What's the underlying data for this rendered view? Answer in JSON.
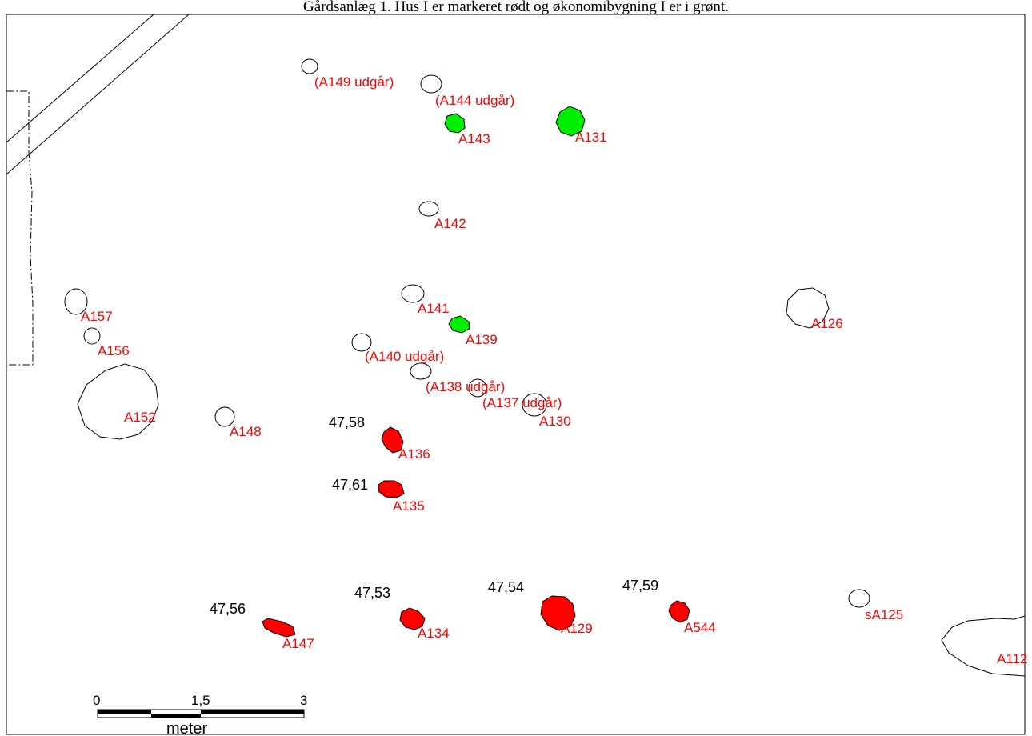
{
  "title": "Gårdsanlæg 1. Hus I er markeret rødt og økonomibygning I er i grønt.",
  "colors": {
    "house_I": "#ff0000",
    "economy_building_I": "#00ee00",
    "outline": "#000000",
    "label": "#ff0000"
  },
  "features": {
    "a149": {
      "label": "(A149 udgår)",
      "fill": "none"
    },
    "a144": {
      "label": "(A144 udgår)",
      "fill": "none"
    },
    "a143": {
      "label": "A143",
      "fill": "green"
    },
    "a131": {
      "label": "A131",
      "fill": "green"
    },
    "a142": {
      "label": "A142",
      "fill": "none"
    },
    "a141": {
      "label": "A141",
      "fill": "none"
    },
    "a139": {
      "label": "A139",
      "fill": "green"
    },
    "a157": {
      "label": "A157",
      "fill": "none"
    },
    "a156": {
      "label": "A156",
      "fill": "none"
    },
    "a140": {
      "label": "(A140 udgår)",
      "fill": "none"
    },
    "a138": {
      "label": "(A138 udgår)",
      "fill": "none"
    },
    "a137": {
      "label": "(A137 udgår)",
      "fill": "none"
    },
    "a130": {
      "label": "A130",
      "fill": "none"
    },
    "a126": {
      "label": "A126",
      "fill": "none"
    },
    "a152": {
      "label": "A152",
      "fill": "none"
    },
    "a148": {
      "label": "A148",
      "fill": "none"
    },
    "a136": {
      "label": "A136",
      "fill": "red",
      "elevation": "47,58"
    },
    "a135": {
      "label": "A135",
      "fill": "red",
      "elevation": "47,61"
    },
    "a147": {
      "label": "A147",
      "fill": "red",
      "elevation": "47,56"
    },
    "a134": {
      "label": "A134",
      "fill": "red",
      "elevation": "47,53"
    },
    "a129": {
      "label": "A129",
      "fill": "red",
      "elevation": "47,54"
    },
    "a544": {
      "label": "A544",
      "fill": "red",
      "elevation": "47,59"
    },
    "sa125": {
      "label": "sA125",
      "fill": "none"
    },
    "a112": {
      "label": "A112",
      "fill": "none"
    }
  },
  "scale_bar": {
    "tick_0": "0",
    "tick_mid": "1,5",
    "tick_end": "3",
    "unit": "meter"
  }
}
